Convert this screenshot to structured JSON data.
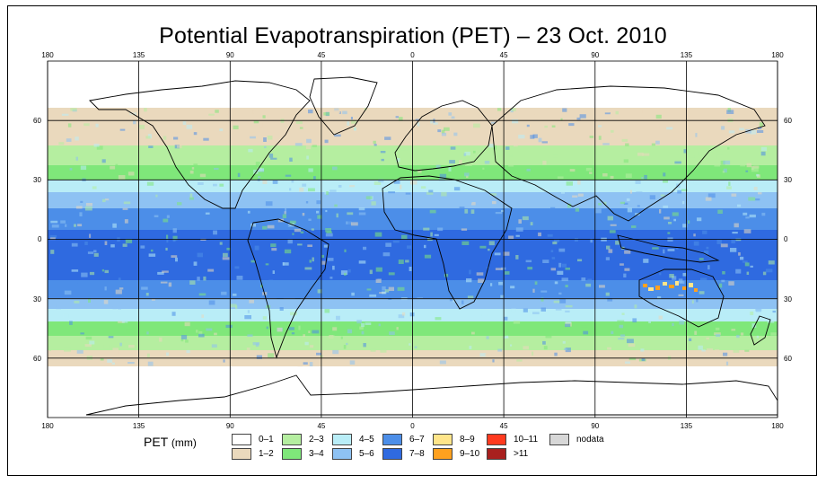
{
  "title": "Potential Evapotranspiration (PET) – 23 Oct. 2010",
  "legend": {
    "title": "PET",
    "unit": "(mm)",
    "items": [
      {
        "label": "0–1",
        "color": "#ffffff"
      },
      {
        "label": "1–2",
        "color": "#ead9bd"
      },
      {
        "label": "2–3",
        "color": "#b5eea0"
      },
      {
        "label": "3–4",
        "color": "#7fe77a"
      },
      {
        "label": "4–5",
        "color": "#b9edf7"
      },
      {
        "label": "5–6",
        "color": "#8ec2f3"
      },
      {
        "label": "6–7",
        "color": "#4c8ee8"
      },
      {
        "label": "7–8",
        "color": "#2f6ae0"
      },
      {
        "label": "8–9",
        "color": "#ffe58a"
      },
      {
        "label": "9–10",
        "color": "#ffa11f"
      },
      {
        "label": "10–11",
        "color": "#ff3a1f"
      },
      {
        "label": ">11",
        "color": "#a8201e"
      },
      {
        "label": "nodata",
        "color": "#d7d7d7"
      }
    ]
  },
  "axes": {
    "lon_ticks": [
      "180",
      "135",
      "90",
      "45",
      "0",
      "45",
      "90",
      "135",
      "180"
    ],
    "lat_ticks": [
      "60",
      "30",
      "0",
      "30",
      "60"
    ]
  },
  "map_data": {
    "lon_range": [
      -180,
      180
    ],
    "lat_range": [
      -90,
      90
    ],
    "gridlines": true
  }
}
